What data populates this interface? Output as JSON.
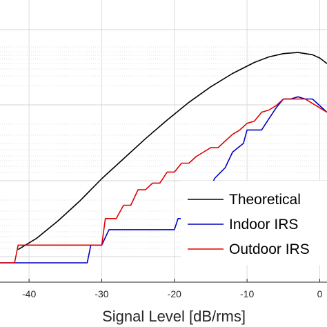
{
  "chart_data": {
    "type": "line",
    "title": "",
    "xlabel": "Signal Level [dB/rms]",
    "ylabel": "",
    "xlim": [
      -44,
      1
    ],
    "ylim": [
      0,
      1
    ],
    "x_ticks": [
      -40,
      -30,
      -20,
      -10,
      0
    ],
    "x_tick_labels": [
      "-40",
      "-30",
      "-20",
      "-10",
      "0"
    ],
    "grid": true,
    "y_scale": "log",
    "legend_position": "bottom-right",
    "series": [
      {
        "name": "Theoretical",
        "color": "#000000",
        "x": [
          -41.5,
          -39,
          -36,
          -33,
          -30,
          -27,
          -24,
          -21,
          -18,
          -15,
          -12,
          -9,
          -7,
          -5,
          -3,
          -1,
          0,
          1
        ],
        "y": [
          0.06,
          0.11,
          0.19,
          0.28,
          0.38,
          0.47,
          0.56,
          0.645,
          0.725,
          0.795,
          0.855,
          0.905,
          0.93,
          0.945,
          0.95,
          0.94,
          0.925,
          0.9
        ]
      },
      {
        "name": "Indoor IRS",
        "color": "#0000bf",
        "x": [
          -44,
          -32,
          -31.5,
          -30,
          -29,
          -27,
          -24,
          -22,
          -21,
          -20,
          -19.5,
          -17,
          -16.5,
          -15.5,
          -14.5,
          -13,
          -12,
          -10.5,
          -10,
          -9,
          -8,
          -7,
          -6,
          -5,
          -4,
          -3,
          -2,
          -1,
          0,
          1
        ],
        "y": [
          0.0,
          0.0,
          0.08,
          0.08,
          0.15,
          0.15,
          0.15,
          0.15,
          0.15,
          0.15,
          0.2,
          0.2,
          0.27,
          0.27,
          0.38,
          0.43,
          0.5,
          0.54,
          0.6,
          0.6,
          0.6,
          0.65,
          0.7,
          0.74,
          0.74,
          0.75,
          0.74,
          0.74,
          0.71,
          0.68
        ]
      },
      {
        "name": "Outdoor IRS",
        "color": "#e00000",
        "x": [
          -44,
          -42,
          -41.5,
          -30,
          -29.5,
          -28,
          -27,
          -26,
          -25,
          -24,
          -23,
          -22,
          -21,
          -20,
          -19,
          -18,
          -17,
          -16,
          -15,
          -14,
          -13,
          -12,
          -11,
          -10,
          -9,
          -8,
          -7,
          -6,
          -5,
          -4,
          -3,
          -2,
          -1,
          0,
          1
        ],
        "y": [
          0.0,
          0.0,
          0.08,
          0.08,
          0.2,
          0.2,
          0.26,
          0.26,
          0.33,
          0.33,
          0.36,
          0.36,
          0.41,
          0.41,
          0.45,
          0.45,
          0.48,
          0.5,
          0.52,
          0.52,
          0.55,
          0.58,
          0.6,
          0.63,
          0.64,
          0.68,
          0.69,
          0.71,
          0.74,
          0.74,
          0.74,
          0.74,
          0.72,
          0.7,
          0.68
        ]
      }
    ]
  }
}
